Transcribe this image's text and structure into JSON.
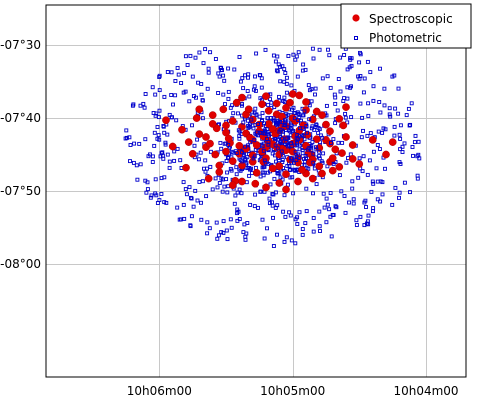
{
  "chart_data": {
    "type": "scatter",
    "title": "",
    "xlabel": "",
    "ylabel": "",
    "x_axis": {
      "unit": "RA (minutes of time, 10h0Xm00)",
      "ticks": [
        {
          "value": 6,
          "label": "10h06m00"
        },
        {
          "value": 5,
          "label": "10h05m00"
        },
        {
          "value": 4,
          "label": "10h04m00"
        }
      ],
      "xlim": [
        6.85,
        3.7
      ],
      "reversed": true
    },
    "y_axis": {
      "unit": "Dec (arcmin from -07°00')",
      "ticks": [
        {
          "value": -30,
          "label": "-07°30"
        },
        {
          "value": -40,
          "label": "-07°40"
        },
        {
          "value": -50,
          "label": "-07°50"
        },
        {
          "value": -60,
          "label": "-08°00"
        }
      ],
      "ylim": [
        -75.5,
        -24.5
      ]
    },
    "grid": true,
    "legend_position": "top-right",
    "colors": {
      "spectroscopic_fill": "#e00000",
      "spectroscopic_edge": "#b00000",
      "photometric": "#0000cc",
      "grid": "#c8c8c8",
      "axis": "#000000"
    },
    "series": [
      {
        "name": "Spectroscopic",
        "marker": "filled-circle",
        "n_points": 130,
        "center": [
          5.12,
          -43.2
        ],
        "points": [
          [
            5.38,
            -37.2
          ],
          [
            5.02,
            -37.9
          ],
          [
            4.82,
            -39.1
          ],
          [
            5.23,
            -38.1
          ],
          [
            5.3,
            -40.2
          ],
          [
            5.6,
            -39.6
          ],
          [
            5.5,
            -41.0
          ],
          [
            5.5,
            -42.0
          ],
          [
            5.7,
            -42.2
          ],
          [
            5.65,
            -44.0
          ],
          [
            5.4,
            -44.9
          ],
          [
            5.3,
            -46.0
          ],
          [
            5.27,
            -47.5
          ],
          [
            5.55,
            -47.4
          ],
          [
            5.43,
            -48.6
          ],
          [
            5.1,
            -48.9
          ],
          [
            4.96,
            -48.7
          ],
          [
            4.9,
            -47.6
          ],
          [
            4.65,
            -46.7
          ],
          [
            4.72,
            -46.0
          ],
          [
            4.55,
            -45.6
          ],
          [
            4.68,
            -44.3
          ],
          [
            4.75,
            -43.0
          ],
          [
            4.89,
            -42.3
          ],
          [
            4.25,
            -43.3
          ],
          [
            5.83,
            -41.6
          ],
          [
            5.0,
            -36.7
          ],
          [
            5.12,
            -39.5
          ],
          [
            4.98,
            -40.4
          ],
          [
            5.15,
            -41.5
          ],
          [
            4.95,
            -41.7
          ],
          [
            5.08,
            -44.2
          ],
          [
            5.23,
            -44.6
          ],
          [
            5.1,
            -45.0
          ],
          [
            4.86,
            -45.0
          ],
          [
            4.9,
            -43.8
          ],
          [
            5.38,
            -46.5
          ],
          [
            4.78,
            -47.6
          ],
          [
            5.2,
            -49.5
          ],
          [
            5.63,
            -48.3
          ],
          [
            5.47,
            -43.4
          ],
          [
            5.35,
            -42.1
          ],
          [
            5.35,
            -39.5
          ],
          [
            5.18,
            -40.8
          ],
          [
            5.05,
            -38.6
          ],
          [
            5.72,
            -40.0
          ],
          [
            4.75,
            -40.9
          ],
          [
            4.85,
            -40.2
          ],
          [
            4.6,
            -42.6
          ],
          [
            4.63,
            -44.8
          ],
          [
            4.96,
            -46.1
          ],
          [
            5.27,
            -43.7
          ],
          [
            5.06,
            -42.9
          ],
          [
            4.8,
            -44.1
          ],
          [
            5.45,
            -45.9
          ],
          [
            5.58,
            -45.0
          ],
          [
            4.7,
            -45.5
          ],
          [
            5.38,
            -41.2
          ],
          [
            5.13,
            -42.2
          ],
          [
            5.0,
            -43.5
          ],
          [
            4.9,
            -38.9
          ],
          [
            5.1,
            -46.6
          ],
          [
            5.52,
            -38.8
          ],
          [
            5.78,
            -43.3
          ],
          [
            5.18,
            -43.1
          ],
          [
            5.05,
            -41.1
          ],
          [
            5.22,
            -42.5
          ],
          [
            5.0,
            -44.6
          ],
          [
            5.3,
            -45.1
          ],
          [
            4.96,
            -45.5
          ],
          [
            5.12,
            -44.0
          ],
          [
            5.25,
            -40.9
          ],
          [
            5.45,
            -40.4
          ],
          [
            4.82,
            -42.9
          ],
          [
            4.72,
            -41.8
          ],
          [
            5.57,
            -41.4
          ],
          [
            4.93,
            -47.1
          ],
          [
            5.22,
            -46.0
          ],
          [
            5.05,
            -47.7
          ],
          [
            5.38,
            -48.7
          ],
          [
            4.85,
            -48.3
          ],
          [
            5.65,
            -42.6
          ],
          [
            4.55,
            -43.7
          ],
          [
            5.08,
            -39.8
          ],
          [
            4.85,
            -45.7
          ],
          [
            5.2,
            -44.0
          ],
          [
            4.98,
            -42.5
          ],
          [
            5.3,
            -43.0
          ],
          [
            5.15,
            -46.9
          ],
          [
            4.72,
            -43.5
          ],
          [
            5.42,
            -37.9
          ],
          [
            4.9,
            -37.8
          ],
          [
            5.7,
            -38.8
          ],
          [
            4.62,
            -41.0
          ],
          [
            5.28,
            -49.0
          ],
          [
            4.8,
            -46.6
          ],
          [
            5.55,
            -46.5
          ],
          [
            5.12,
            -38.0
          ],
          [
            5.25,
            -41.8
          ],
          [
            4.92,
            -41.0
          ],
          [
            5.02,
            -45.7
          ],
          [
            5.35,
            -44.2
          ],
          [
            5.0,
            -40.0
          ],
          [
            5.18,
            -39.0
          ],
          [
            4.78,
            -39.6
          ],
          [
            5.48,
            -42.8
          ],
          [
            5.1,
            -41.7
          ],
          [
            4.88,
            -44.8
          ],
          [
            5.2,
            -45.5
          ],
          [
            5.4,
            -43.8
          ],
          [
            4.95,
            -43.0
          ],
          [
            5.15,
            -43.6
          ],
          [
            5.05,
            -44.4
          ],
          [
            5.32,
            -42.7
          ],
          [
            4.7,
            -47.2
          ],
          [
            5.62,
            -43.5
          ],
          [
            5.6,
            -40.8
          ],
          [
            4.65,
            -40.1
          ],
          [
            4.5,
            -46.3
          ],
          [
            5.75,
            -44.9
          ],
          [
            5.05,
            -49.8
          ],
          [
            5.45,
            -49.2
          ],
          [
            4.4,
            -43.0
          ],
          [
            5.95,
            -40.3
          ],
          [
            5.9,
            -43.9
          ],
          [
            4.3,
            -45.0
          ],
          [
            5.2,
            -37.0
          ],
          [
            4.95,
            -36.9
          ],
          [
            5.8,
            -46.8
          ],
          [
            4.6,
            -38.5
          ],
          [
            5.33,
            -38.8
          ],
          [
            5.07,
            -40.9
          ],
          [
            4.87,
            -46.1
          ],
          [
            5.5,
            -44.6
          ]
        ]
      },
      {
        "name": "Photometric",
        "marker": "open-square",
        "n_points": 920,
        "center": [
          5.12,
          -43.2
        ],
        "core_fraction": 0.33,
        "extent": {
          "ra": [
            6.4,
            4.05
          ],
          "dec": [
            -30.3,
            -58.5
          ]
        }
      }
    ]
  },
  "legend": {
    "items": [
      {
        "label": "Spectroscopic",
        "color": "#e00000",
        "marker": "filled-circle"
      },
      {
        "label": "Photometric",
        "color": "#0000cc",
        "marker": "open-square"
      }
    ]
  }
}
